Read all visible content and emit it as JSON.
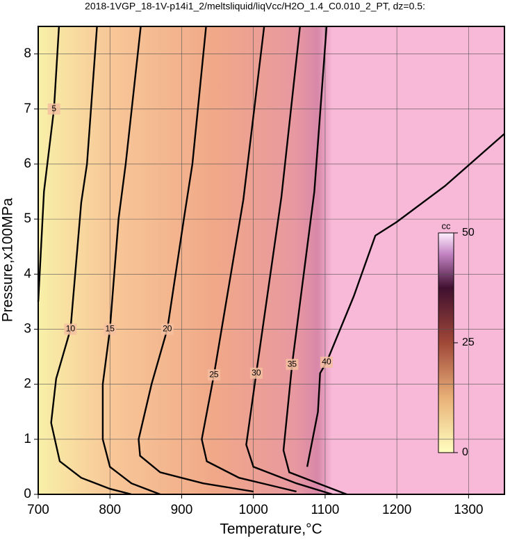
{
  "chart_data": {
    "type": "contour",
    "title": "2018-1VGP_18-1V-p14i1_2/meltsliquid/liqVcc/H2O_1.4_C0.010_2_PT, dz=0.5:",
    "x_label": "Temperature,°C",
    "y_label": "Pressure,x100MPa",
    "xlim": [
      700,
      1350
    ],
    "ylim": [
      0,
      8.5
    ],
    "xticks": [
      700,
      800,
      900,
      1000,
      1100,
      1200,
      1300
    ],
    "yticks": [
      0,
      1,
      2,
      3,
      4,
      5,
      6,
      7,
      8
    ],
    "grid": true,
    "colorbar": {
      "label": "cc",
      "lim": [
        0,
        50
      ],
      "ticks": [
        0,
        25,
        50
      ]
    },
    "contours": [
      {
        "level": 5,
        "x": [
          729,
          722,
          708,
          702,
          700
        ],
        "y": [
          8.5,
          7,
          5.5,
          4,
          3.5
        ]
      },
      {
        "level": 10,
        "x": [
          782,
          768,
          760,
          745,
          725,
          718,
          730,
          760,
          800,
          830
        ],
        "y": [
          8.5,
          6,
          5.3,
          3,
          2.1,
          1.3,
          0.6,
          0.3,
          0.1,
          0
        ]
      },
      {
        "level": 15,
        "x": [
          843,
          822,
          812,
          800,
          790,
          790,
          800,
          830,
          870
        ],
        "y": [
          8.5,
          6,
          5,
          3,
          2,
          1,
          0.5,
          0.2,
          0
        ]
      },
      {
        "level": 20,
        "x": [
          934,
          915,
          903,
          880,
          858,
          840,
          842,
          870,
          930,
          1000
        ],
        "y": [
          8.5,
          6,
          5,
          3,
          2,
          1,
          0.7,
          0.4,
          0.2,
          0.05
        ]
      },
      {
        "level": 25,
        "x": [
          1015,
          986,
          945,
          928,
          935,
          980,
          1060
        ],
        "y": [
          8.5,
          5.35,
          2.17,
          1,
          0.6,
          0.3,
          0.05
        ]
      },
      {
        "level": 30,
        "x": [
          1065,
          1039,
          1004,
          990,
          1000,
          1060,
          1110
        ],
        "y": [
          8.5,
          5.4,
          2.2,
          0.9,
          0.5,
          0.2,
          0
        ]
      },
      {
        "level": 35,
        "x": [
          1102,
          1085,
          1054,
          1042,
          1050,
          1100,
          1130
        ],
        "y": [
          8.5,
          5.5,
          2.36,
          0.8,
          0.4,
          0.15,
          0
        ]
      },
      {
        "level": 40,
        "x": [
          1075,
          1090,
          1093,
          1102,
          1140,
          1170,
          1200,
          1267,
          1350
        ],
        "y": [
          0.5,
          1.5,
          2.2,
          2.4,
          3.6,
          4.7,
          4.95,
          5.6,
          6.55
        ]
      }
    ]
  }
}
